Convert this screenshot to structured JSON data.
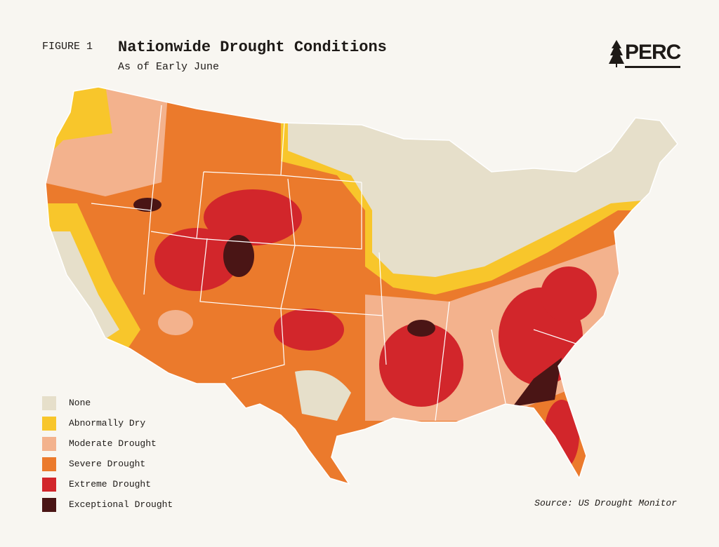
{
  "header": {
    "figure": "FIGURE 1",
    "title": "Nationwide Drought Conditions",
    "subtitle": "As of Early June",
    "logo": "PERC"
  },
  "legend": {
    "items": [
      {
        "label": "None",
        "color": "#e6dfca"
      },
      {
        "label": "Abnormally Dry",
        "color": "#f8c62b"
      },
      {
        "label": "Moderate Drought",
        "color": "#f3b28d"
      },
      {
        "label": "Severe Drought",
        "color": "#eb7a2c"
      },
      {
        "label": "Extreme Drought",
        "color": "#d2262b"
      },
      {
        "label": "Exceptional Drought",
        "color": "#4a1515"
      }
    ]
  },
  "source": "Source: US Drought Monitor"
}
